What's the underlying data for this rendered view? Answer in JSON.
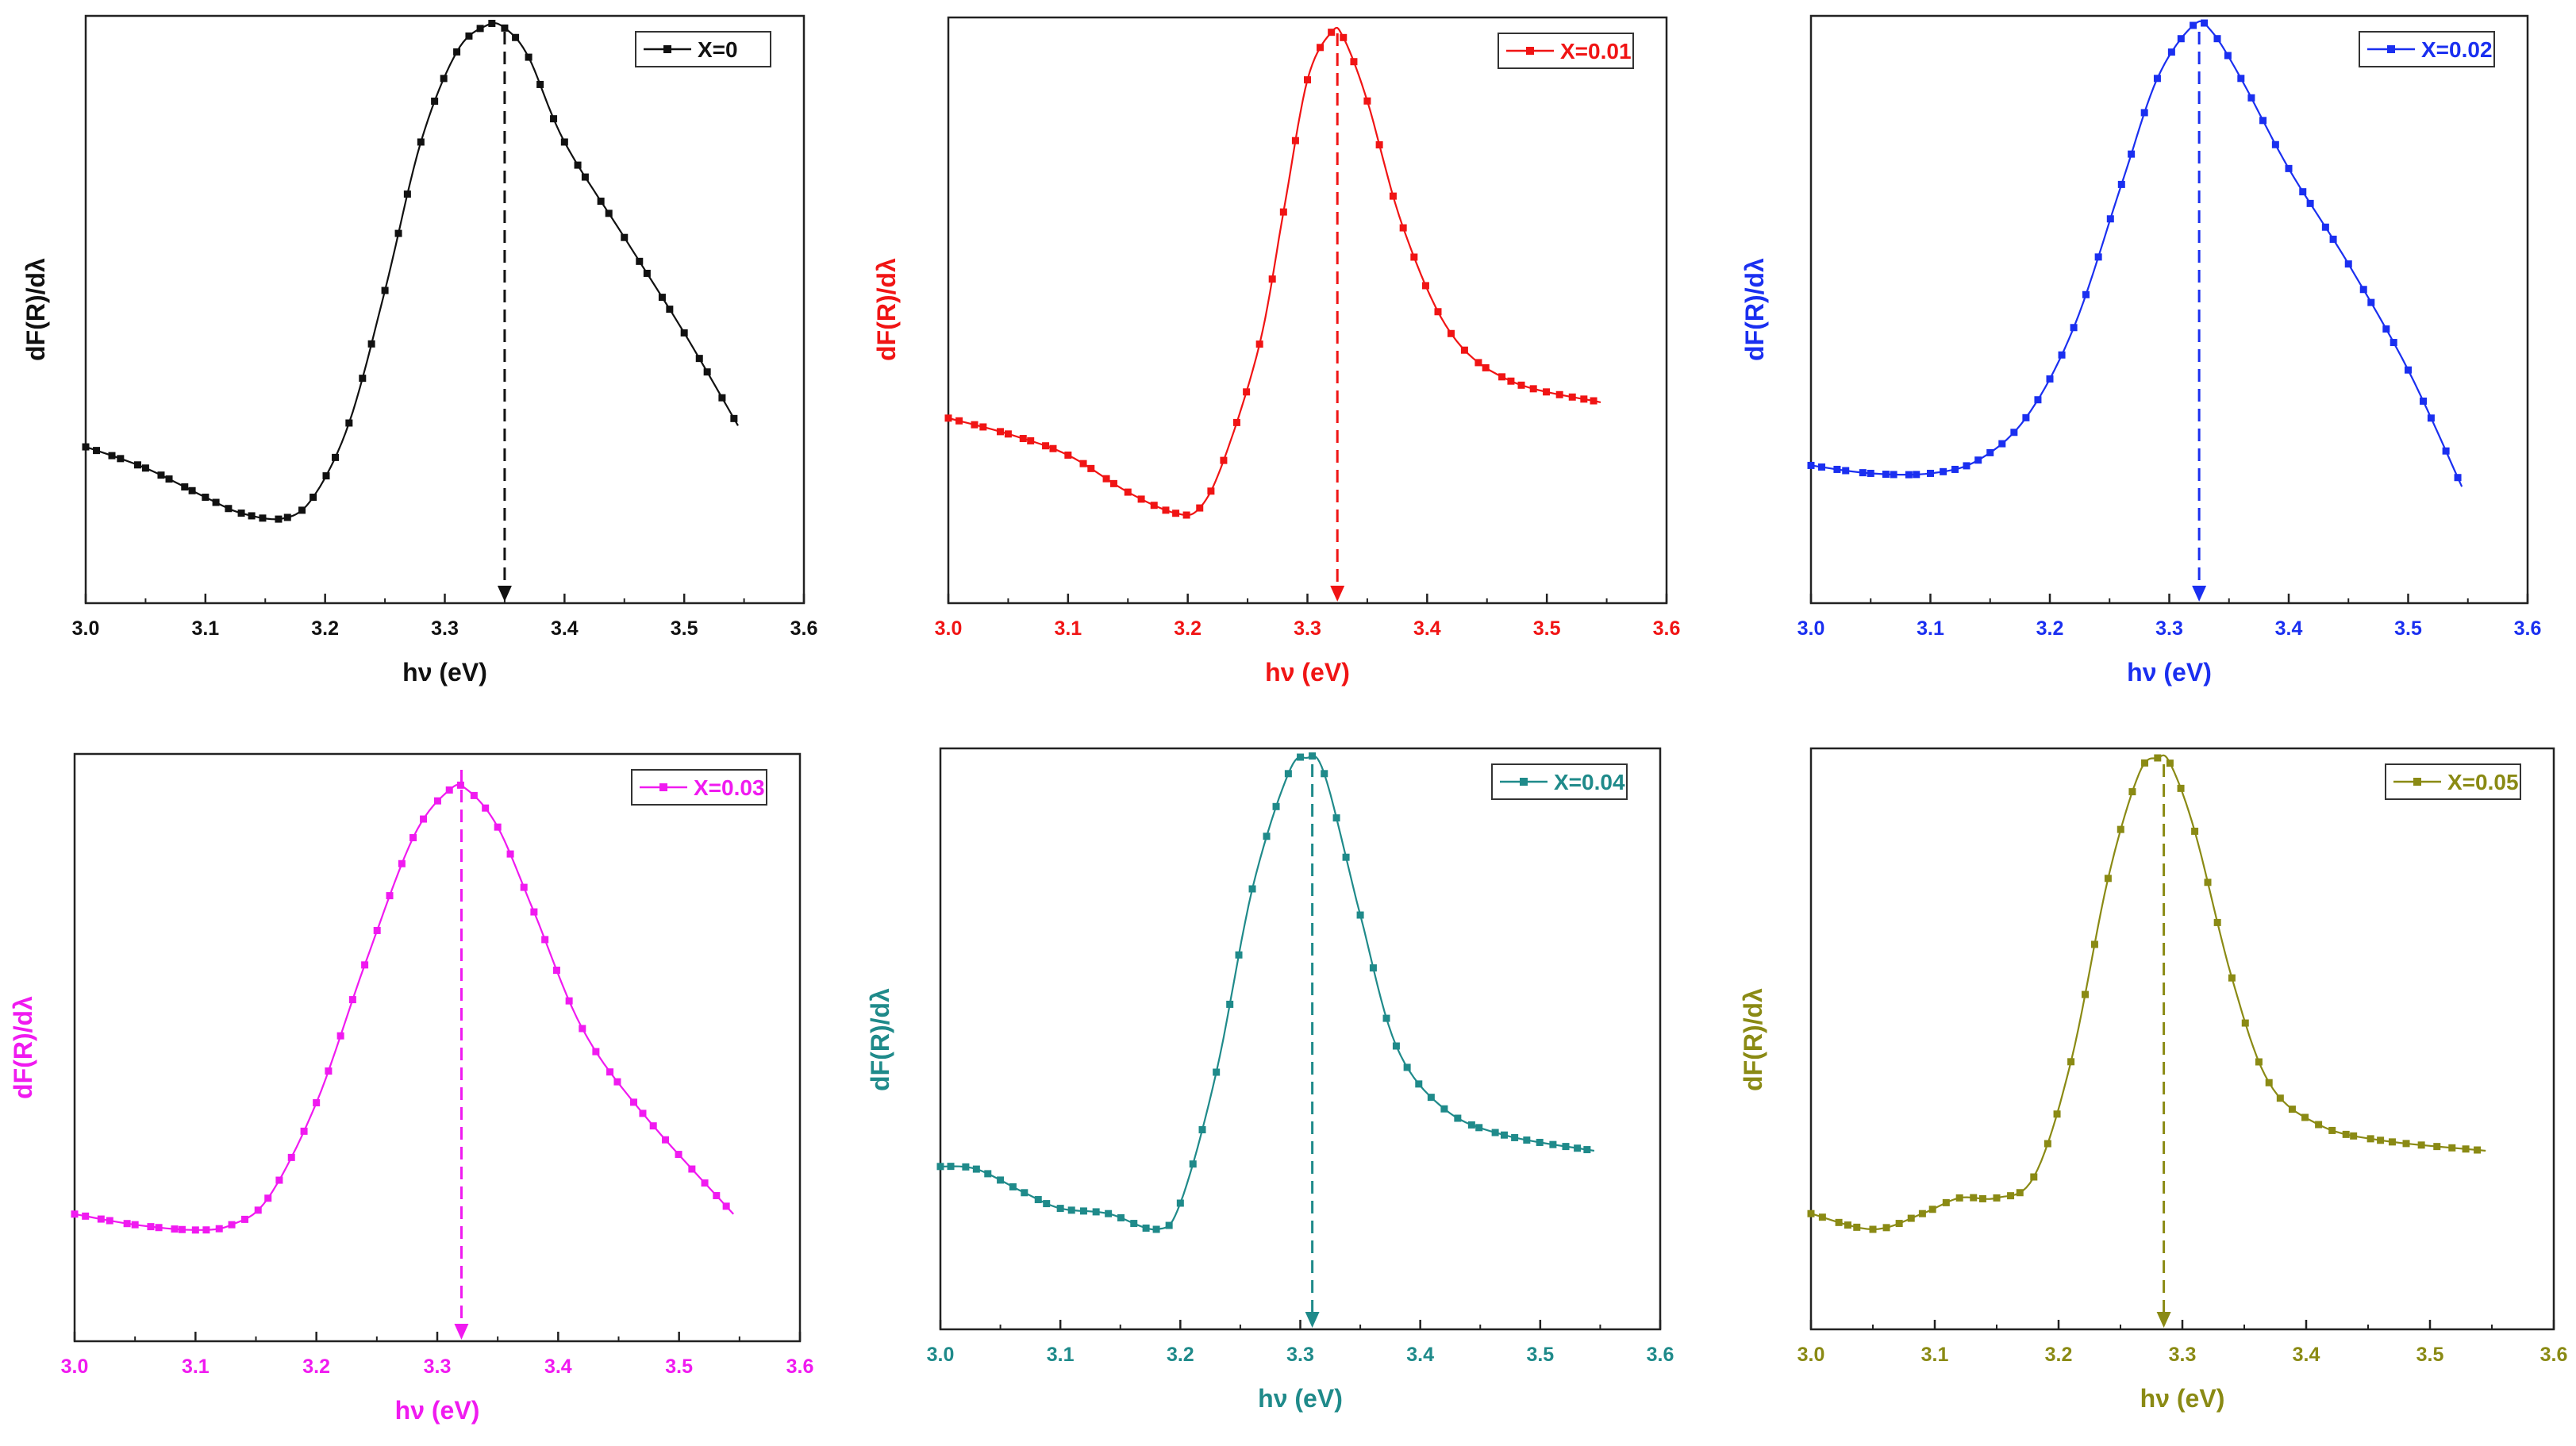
{
  "chart_data": [
    {
      "type": "line",
      "title": "",
      "legend": "X=0",
      "legend_position": "top-right",
      "color": "#111111",
      "xlabel": "hν (eV)",
      "ylabel": "dF(R)/dλ",
      "xlim": [
        3.0,
        3.6
      ],
      "ylim": [
        0,
        1
      ],
      "xticks": [
        "3.0",
        "3.1",
        "3.2",
        "3.3",
        "3.4",
        "3.5",
        "3.6"
      ],
      "peak_arrow_x": 3.35,
      "x": [
        3.0,
        3.05,
        3.1,
        3.13,
        3.165,
        3.19,
        3.22,
        3.25,
        3.28,
        3.31,
        3.335,
        3.35,
        3.37,
        3.4,
        3.45,
        3.5,
        3.545
      ],
      "y": [
        0.205,
        0.165,
        0.11,
        0.08,
        0.07,
        0.11,
        0.25,
        0.5,
        0.78,
        0.95,
        1.0,
        0.995,
        0.94,
        0.78,
        0.6,
        0.42,
        0.245
      ]
    },
    {
      "type": "line",
      "title": "",
      "legend": "X=0.01",
      "legend_position": "top-right",
      "color": "#f01414",
      "xlabel": "hν (eV)",
      "ylabel": "dF(R)/dλ",
      "xlim": [
        3.0,
        3.6
      ],
      "ylim": [
        0,
        1
      ],
      "xticks": [
        "3.0",
        "3.1",
        "3.2",
        "3.3",
        "3.4",
        "3.5",
        "3.6"
      ],
      "peak_arrow_x": 3.325,
      "x": [
        3.0,
        3.05,
        3.1,
        3.15,
        3.19,
        3.21,
        3.23,
        3.26,
        3.28,
        3.3,
        3.32,
        3.33,
        3.35,
        3.38,
        3.42,
        3.47,
        3.545
      ],
      "y": [
        0.26,
        0.23,
        0.19,
        0.12,
        0.08,
        0.09,
        0.18,
        0.4,
        0.65,
        0.9,
        0.99,
        0.98,
        0.86,
        0.62,
        0.42,
        0.33,
        0.29
      ]
    },
    {
      "type": "line",
      "title": "",
      "legend": "X=0.02",
      "legend_position": "top-right",
      "color": "#1a2ff0",
      "xlabel": "hν (eV)",
      "ylabel": "dF(R)/dλ",
      "xlim": [
        3.0,
        3.6
      ],
      "ylim": [
        0,
        1
      ],
      "xticks": [
        "3.0",
        "3.1",
        "3.2",
        "3.3",
        "3.4",
        "3.5",
        "3.6"
      ],
      "peak_arrow_x": 3.325,
      "x": [
        3.0,
        3.05,
        3.1,
        3.14,
        3.18,
        3.22,
        3.26,
        3.29,
        3.32,
        3.335,
        3.36,
        3.4,
        3.45,
        3.5,
        3.545
      ],
      "y": [
        0.17,
        0.155,
        0.155,
        0.18,
        0.26,
        0.43,
        0.7,
        0.9,
        1.0,
        0.99,
        0.9,
        0.73,
        0.55,
        0.35,
        0.13
      ]
    },
    {
      "type": "line",
      "title": "",
      "legend": "X=0.03",
      "legend_position": "top-right",
      "color": "#f01af0",
      "xlabel": "hν (eV)",
      "ylabel": "dF(R)/dλ",
      "xlim": [
        3.0,
        3.6
      ],
      "ylim": [
        0,
        1
      ],
      "xticks": [
        "3.0",
        "3.1",
        "3.2",
        "3.3",
        "3.4",
        "3.5",
        "3.6"
      ],
      "peak_arrow_x": 3.32,
      "x": [
        3.0,
        3.05,
        3.1,
        3.13,
        3.16,
        3.2,
        3.24,
        3.28,
        3.31,
        3.325,
        3.35,
        3.38,
        3.42,
        3.47,
        3.545
      ],
      "y": [
        0.15,
        0.13,
        0.12,
        0.13,
        0.18,
        0.36,
        0.62,
        0.86,
        0.95,
        0.95,
        0.88,
        0.72,
        0.5,
        0.34,
        0.15
      ]
    },
    {
      "type": "line",
      "title": "",
      "legend": "X=0.04",
      "legend_position": "top-right",
      "color": "#1f8a8a",
      "xlabel": "hν (eV)",
      "ylabel": "dF(R)/dλ",
      "xlim": [
        3.0,
        3.6
      ],
      "ylim": [
        0,
        1
      ],
      "xticks": [
        "3.0",
        "3.1",
        "3.2",
        "3.3",
        "3.4",
        "3.5",
        "3.6"
      ],
      "peak_arrow_x": 3.31,
      "x": [
        3.0,
        3.03,
        3.07,
        3.1,
        3.14,
        3.18,
        3.2,
        3.23,
        3.26,
        3.29,
        3.305,
        3.32,
        3.35,
        3.38,
        3.42,
        3.47,
        3.545
      ],
      "y": [
        0.22,
        0.215,
        0.17,
        0.14,
        0.13,
        0.1,
        0.15,
        0.4,
        0.75,
        0.97,
        1.0,
        0.97,
        0.7,
        0.45,
        0.33,
        0.28,
        0.25
      ]
    },
    {
      "type": "line",
      "title": "",
      "legend": "X=0.05",
      "legend_position": "top-right",
      "color": "#8a8a14",
      "xlabel": "hν (eV)",
      "ylabel": "dF(R)/dλ",
      "xlim": [
        3.0,
        3.6
      ],
      "ylim": [
        0,
        1
      ],
      "xticks": [
        "3.0",
        "3.1",
        "3.2",
        "3.3",
        "3.4",
        "3.5",
        "3.6"
      ],
      "peak_arrow_x": 3.285,
      "x": [
        3.0,
        3.05,
        3.09,
        3.12,
        3.15,
        3.18,
        3.21,
        3.24,
        3.265,
        3.28,
        3.29,
        3.31,
        3.34,
        3.37,
        3.41,
        3.46,
        3.545
      ],
      "y": [
        0.13,
        0.1,
        0.13,
        0.16,
        0.16,
        0.2,
        0.42,
        0.77,
        0.97,
        1.0,
        0.99,
        0.86,
        0.58,
        0.38,
        0.3,
        0.27,
        0.25
      ]
    }
  ]
}
